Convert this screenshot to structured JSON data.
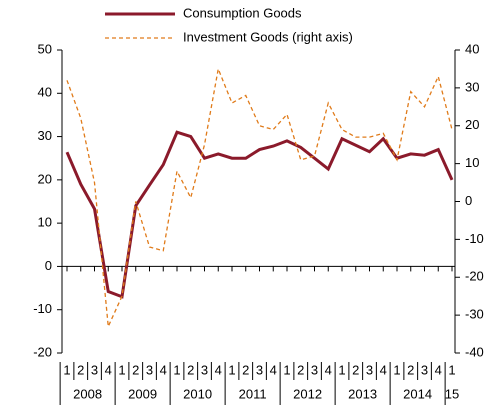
{
  "chart_data": {
    "type": "line",
    "categories": [
      "1",
      "2",
      "3",
      "4",
      "1",
      "2",
      "3",
      "4",
      "1",
      "2",
      "3",
      "4",
      "1",
      "2",
      "3",
      "4",
      "1",
      "2",
      "3",
      "4",
      "1",
      "2",
      "3",
      "4",
      "1",
      "2",
      "3",
      "4",
      "1"
    ],
    "year_labels": [
      "2008",
      "2009",
      "2010",
      "2011",
      "2012",
      "2013",
      "2014",
      "15"
    ],
    "series": [
      {
        "name": "Consumption Goods",
        "color": "#8b1a2b",
        "values": [
          26.4,
          19,
          13.3,
          -5.8,
          -7,
          14,
          18.8,
          23.5,
          31,
          30,
          25,
          26,
          25,
          25,
          27,
          27.8,
          29,
          27.5,
          25,
          22.5,
          29.5,
          28,
          26.5,
          29.5,
          25,
          26,
          25.7,
          27,
          20
        ]
      },
      {
        "name": "Investment Goods (right axis)",
        "color": "#e07b1a",
        "axis": "y2",
        "values": [
          32,
          22,
          5,
          -33,
          -25,
          0,
          -12,
          -13,
          8,
          1,
          15,
          35,
          26,
          28,
          20,
          19,
          23,
          11,
          12,
          26,
          19,
          17,
          17,
          18,
          11,
          29,
          25,
          33,
          19
        ]
      }
    ],
    "ylim": [
      -20,
      50
    ],
    "yticks": [
      -20,
      -10,
      0,
      10,
      20,
      30,
      40,
      50
    ],
    "y2lim": [
      -40,
      40
    ],
    "y2ticks": [
      -40,
      -30,
      -20,
      -10,
      0,
      10,
      20,
      30,
      40
    ]
  }
}
